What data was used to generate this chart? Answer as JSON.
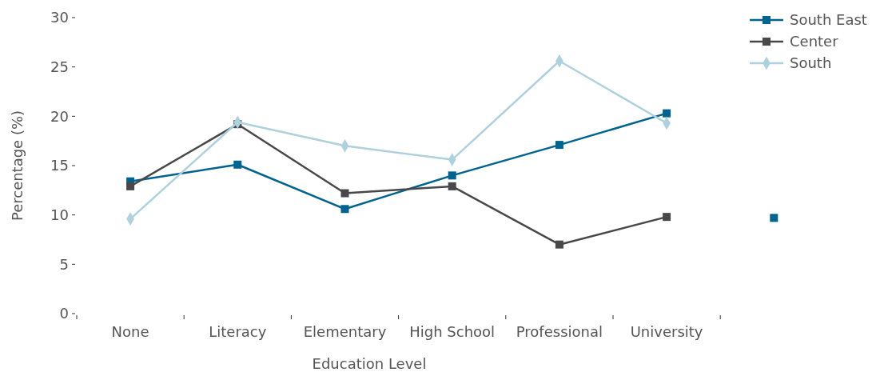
{
  "chart_data": {
    "type": "line",
    "xlabel": "Education Level",
    "ylabel": "Percentage (%)",
    "categories": [
      "None",
      "Literacy",
      "Elementary",
      "High School",
      "Professional",
      "University",
      null
    ],
    "ylim": [
      0,
      30
    ],
    "yticks": [
      0,
      5,
      10,
      15,
      20,
      25,
      30
    ],
    "grid": false,
    "legend": "top right",
    "series": [
      {
        "name": "South East",
        "color": "#00628f",
        "marker": "square",
        "values": [
          13.4,
          15.1,
          10.6,
          14.0,
          17.1,
          20.3,
          null
        ]
      },
      {
        "name": "Center",
        "color": "#48484a",
        "marker": "square",
        "values": [
          12.9,
          19.2,
          12.2,
          12.9,
          7.0,
          9.8,
          null
        ]
      },
      {
        "name": "South",
        "color": "#afd0dd",
        "marker": "diamond",
        "values": [
          9.6,
          19.4,
          17.0,
          15.6,
          25.6,
          19.3,
          null
        ]
      },
      {
        "type": "scatter",
        "color": "#00628f",
        "marker": "square",
        "values": [
          null,
          null,
          null,
          null,
          null,
          null,
          9.7
        ]
      }
    ]
  }
}
